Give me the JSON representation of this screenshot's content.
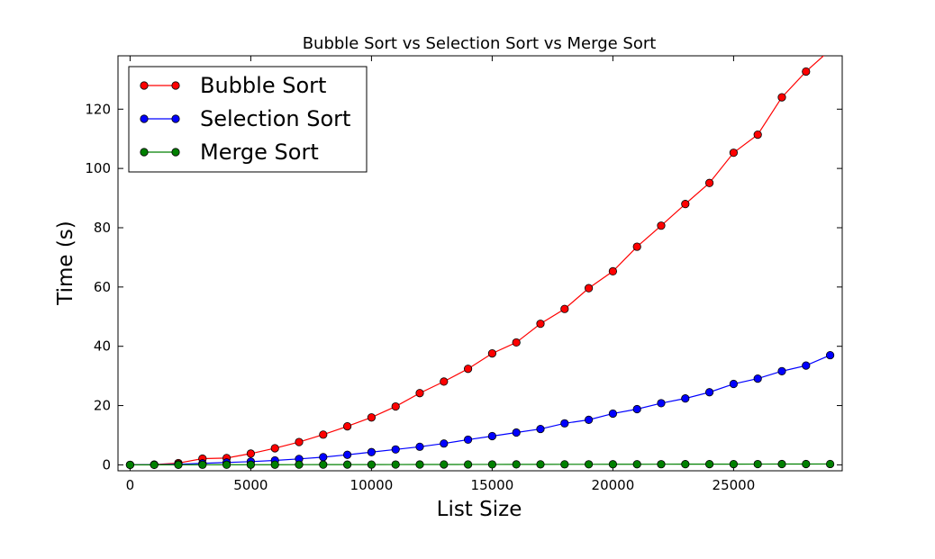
{
  "chart_data": {
    "type": "line",
    "title": "Bubble Sort vs Selection Sort vs Merge Sort",
    "xlabel": "List Size",
    "ylabel": "Time (s)",
    "xlim": [
      -500,
      29500
    ],
    "ylim": [
      -2,
      138
    ],
    "xticks": [
      0,
      5000,
      10000,
      15000,
      20000,
      25000
    ],
    "yticks": [
      0,
      20,
      40,
      60,
      80,
      100,
      120
    ],
    "legend_position": "top-left",
    "x": [
      0,
      1000,
      2000,
      3000,
      4000,
      5000,
      6000,
      7000,
      8000,
      9000,
      10000,
      11000,
      12000,
      13000,
      14000,
      15000,
      16000,
      17000,
      18000,
      19000,
      20000,
      21000,
      22000,
      23000,
      24000,
      25000,
      26000,
      27000,
      28000,
      29000
    ],
    "series": [
      {
        "name": "Bubble Sort",
        "color": "#ff0000",
        "values": [
          0,
          0.1,
          0.6,
          2.1,
          2.3,
          3.8,
          5.6,
          7.7,
          10.2,
          13.0,
          16.0,
          19.7,
          24.2,
          28.1,
          32.4,
          37.6,
          41.3,
          47.6,
          52.6,
          59.6,
          65.3,
          73.6,
          80.7,
          88.0,
          95.1,
          105.3,
          111.4,
          124.0,
          132.7,
          140.0
        ]
      },
      {
        "name": "Selection Sort",
        "color": "#0000ff",
        "values": [
          0,
          0.05,
          0.2,
          0.5,
          0.8,
          1.1,
          1.5,
          2.0,
          2.6,
          3.4,
          4.3,
          5.2,
          6.1,
          7.2,
          8.5,
          9.7,
          10.9,
          12.1,
          14.0,
          15.2,
          17.3,
          18.8,
          20.8,
          22.4,
          24.5,
          27.3,
          29.1,
          31.6,
          33.5,
          37.0
        ]
      },
      {
        "name": "Merge Sort",
        "color": "#008000",
        "values": [
          0,
          0.01,
          0.02,
          0.03,
          0.04,
          0.05,
          0.06,
          0.07,
          0.08,
          0.09,
          0.1,
          0.11,
          0.12,
          0.13,
          0.14,
          0.15,
          0.16,
          0.17,
          0.18,
          0.19,
          0.2,
          0.21,
          0.22,
          0.23,
          0.24,
          0.25,
          0.26,
          0.27,
          0.28,
          0.29
        ]
      }
    ]
  }
}
